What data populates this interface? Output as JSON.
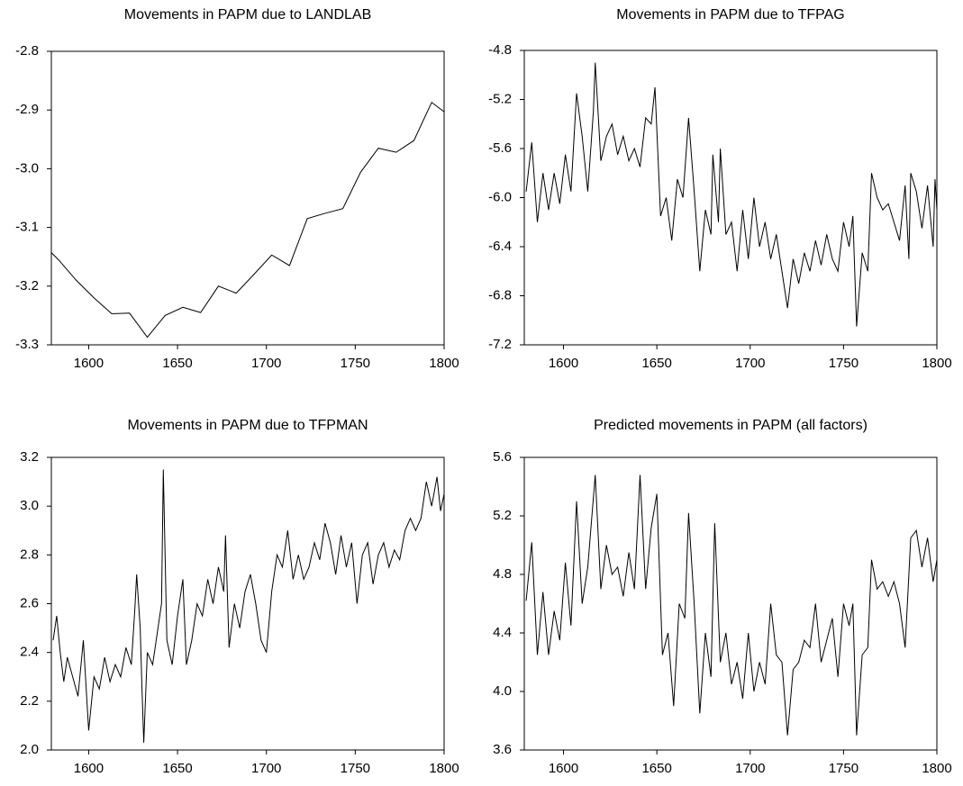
{
  "chart_data": [
    {
      "type": "line",
      "title": "Movements in PAPM due to LANDLAB",
      "color": "#000000",
      "x": [
        1579,
        1583,
        1593,
        1603,
        1613,
        1623,
        1633,
        1643,
        1653,
        1663,
        1673,
        1683,
        1693,
        1703,
        1713,
        1723,
        1733,
        1743,
        1753,
        1763,
        1773,
        1783,
        1793,
        1800
      ],
      "values": [
        -3.143,
        -3.155,
        -3.19,
        -3.22,
        -3.247,
        -3.246,
        -3.287,
        -3.25,
        -3.236,
        -3.245,
        -3.2,
        -3.212,
        -3.18,
        -3.147,
        -3.165,
        -3.085,
        -3.076,
        -3.068,
        -3.006,
        -2.965,
        -2.972,
        -2.952,
        -2.887,
        -2.903
      ],
      "xlim": [
        1579,
        1800
      ],
      "xticks": [
        1600,
        1650,
        1700,
        1750,
        1800
      ],
      "ylim": [
        -3.3,
        -2.8
      ],
      "yticks": [
        -3.3,
        -3.2,
        -3.1,
        {
          "value": -3.0,
          "label": "-3.0"
        },
        -2.9,
        -2.8
      ]
    },
    {
      "type": "line",
      "title": "Movements in PAPM due to TFPAG",
      "color": "#000000",
      "x": [
        1580,
        1583,
        1586,
        1589,
        1592,
        1595,
        1598,
        1601,
        1604,
        1607,
        1610,
        1613,
        1616,
        1617,
        1620,
        1623,
        1626,
        1629,
        1632,
        1635,
        1638,
        1641,
        1644,
        1647,
        1649,
        1652,
        1655,
        1658,
        1661,
        1664,
        1667,
        1670,
        1673,
        1676,
        1679,
        1680,
        1683,
        1684,
        1687,
        1690,
        1693,
        1696,
        1699,
        1702,
        1705,
        1708,
        1711,
        1714,
        1717,
        1720,
        1723,
        1726,
        1729,
        1732,
        1735,
        1738,
        1741,
        1744,
        1747,
        1750,
        1753,
        1755,
        1757,
        1760,
        1763,
        1765,
        1768,
        1771,
        1774,
        1777,
        1780,
        1783,
        1785,
        1786,
        1789,
        1792,
        1795,
        1798,
        1799,
        1800
      ],
      "values": [
        -5.95,
        -5.55,
        -6.2,
        -5.8,
        -6.1,
        -5.8,
        -6.05,
        -5.65,
        -5.95,
        -5.15,
        -5.5,
        -5.95,
        -5.3,
        -4.9,
        -5.7,
        -5.5,
        -5.4,
        -5.65,
        -5.5,
        -5.7,
        -5.6,
        -5.75,
        -5.35,
        -5.4,
        -5.1,
        -6.15,
        -6.0,
        -6.35,
        -5.85,
        -6.0,
        -5.35,
        -5.95,
        -6.6,
        -6.1,
        -6.3,
        -5.65,
        -6.2,
        -5.6,
        -6.3,
        -6.2,
        -6.6,
        -6.1,
        -6.5,
        -6.0,
        -6.4,
        -6.2,
        -6.5,
        -6.3,
        -6.6,
        -6.9,
        -6.5,
        -6.7,
        -6.45,
        -6.6,
        -6.35,
        -6.55,
        -6.3,
        -6.5,
        -6.6,
        -6.2,
        -6.4,
        -6.15,
        -7.05,
        -6.45,
        -6.6,
        -5.8,
        -6.0,
        -6.1,
        -6.05,
        -6.2,
        -6.35,
        -5.9,
        -6.5,
        -5.8,
        -5.95,
        -6.25,
        -5.9,
        -6.4,
        -5.85,
        -6.1
      ],
      "xlim": [
        1579,
        1800
      ],
      "xticks": [
        1600,
        1650,
        1700,
        1750,
        1800
      ],
      "ylim": [
        -7.2,
        -4.8
      ],
      "yticks": [
        -7.2,
        -6.8,
        -6.4,
        {
          "value": -6.0,
          "label": "-6.0"
        },
        -5.6,
        -5.2,
        -4.8
      ]
    },
    {
      "type": "line",
      "title": "Movements in PAPM due to TFPMAN",
      "color": "#000000",
      "x": [
        1580,
        1582,
        1584,
        1586,
        1588,
        1591,
        1594,
        1597,
        1600,
        1603,
        1606,
        1609,
        1612,
        1615,
        1618,
        1621,
        1624,
        1626,
        1627,
        1629,
        1630,
        1631,
        1633,
        1636,
        1639,
        1641,
        1642,
        1644,
        1647,
        1650,
        1653,
        1655,
        1658,
        1661,
        1664,
        1667,
        1670,
        1673,
        1676,
        1677,
        1679,
        1682,
        1685,
        1688,
        1691,
        1694,
        1697,
        1700,
        1703,
        1706,
        1709,
        1712,
        1715,
        1718,
        1721,
        1724,
        1727,
        1730,
        1733,
        1736,
        1739,
        1742,
        1745,
        1748,
        1751,
        1754,
        1757,
        1760,
        1763,
        1766,
        1769,
        1772,
        1775,
        1778,
        1781,
        1784,
        1787,
        1790,
        1793,
        1796,
        1798,
        1800
      ],
      "values": [
        2.45,
        2.55,
        2.4,
        2.28,
        2.38,
        2.3,
        2.22,
        2.45,
        2.08,
        2.3,
        2.25,
        2.38,
        2.28,
        2.35,
        2.3,
        2.42,
        2.35,
        2.58,
        2.72,
        2.5,
        2.25,
        2.03,
        2.4,
        2.35,
        2.5,
        2.6,
        3.15,
        2.45,
        2.35,
        2.55,
        2.7,
        2.35,
        2.45,
        2.6,
        2.55,
        2.7,
        2.6,
        2.75,
        2.65,
        2.88,
        2.42,
        2.6,
        2.5,
        2.65,
        2.72,
        2.6,
        2.45,
        2.4,
        2.65,
        2.8,
        2.75,
        2.9,
        2.7,
        2.8,
        2.7,
        2.75,
        2.85,
        2.78,
        2.93,
        2.85,
        2.72,
        2.88,
        2.75,
        2.85,
        2.6,
        2.8,
        2.85,
        2.68,
        2.8,
        2.85,
        2.75,
        2.82,
        2.78,
        2.9,
        2.95,
        2.9,
        2.95,
        3.1,
        3.0,
        3.12,
        2.98,
        3.05
      ],
      "xlim": [
        1579,
        1800
      ],
      "xticks": [
        1600,
        1650,
        1700,
        1750,
        1800
      ],
      "ylim": [
        2.0,
        3.2
      ],
      "yticks": [
        {
          "value": 2.0,
          "label": "2.0"
        },
        2.2,
        2.4,
        2.6,
        2.8,
        {
          "value": 3.0,
          "label": "3.0"
        },
        3.2
      ]
    },
    {
      "type": "line",
      "title": "Predicted movements in PAPM (all factors)",
      "color": "#000000",
      "x": [
        1580,
        1583,
        1586,
        1589,
        1592,
        1595,
        1598,
        1601,
        1604,
        1607,
        1610,
        1613,
        1617,
        1620,
        1623,
        1626,
        1629,
        1632,
        1635,
        1638,
        1641,
        1644,
        1647,
        1650,
        1653,
        1656,
        1659,
        1662,
        1665,
        1667,
        1670,
        1673,
        1676,
        1679,
        1681,
        1684,
        1687,
        1690,
        1693,
        1696,
        1699,
        1702,
        1705,
        1708,
        1711,
        1714,
        1717,
        1720,
        1723,
        1726,
        1729,
        1732,
        1735,
        1738,
        1741,
        1744,
        1747,
        1750,
        1753,
        1755,
        1757,
        1760,
        1763,
        1765,
        1768,
        1771,
        1774,
        1777,
        1780,
        1783,
        1786,
        1789,
        1792,
        1795,
        1798,
        1800
      ],
      "values": [
        4.62,
        5.02,
        4.25,
        4.68,
        4.25,
        4.55,
        4.35,
        4.88,
        4.45,
        5.3,
        4.6,
        4.85,
        5.48,
        4.7,
        5.0,
        4.8,
        4.85,
        4.65,
        4.95,
        4.7,
        5.48,
        4.7,
        5.12,
        5.35,
        4.25,
        4.4,
        3.9,
        4.6,
        4.5,
        5.22,
        4.6,
        3.85,
        4.4,
        4.1,
        5.15,
        4.2,
        4.4,
        4.05,
        4.2,
        3.95,
        4.4,
        4.0,
        4.2,
        4.05,
        4.6,
        4.25,
        4.2,
        3.7,
        4.15,
        4.2,
        4.35,
        4.3,
        4.6,
        4.2,
        4.35,
        4.5,
        4.1,
        4.6,
        4.45,
        4.6,
        3.7,
        4.25,
        4.3,
        4.9,
        4.7,
        4.75,
        4.65,
        4.75,
        4.6,
        4.3,
        5.05,
        5.1,
        4.85,
        5.05,
        4.75,
        4.9
      ],
      "xlim": [
        1579,
        1800
      ],
      "xticks": [
        1600,
        1650,
        1700,
        1750,
        1800
      ],
      "ylim": [
        3.6,
        5.6
      ],
      "yticks": [
        3.6,
        {
          "value": 4.0,
          "label": "4.0"
        },
        4.4,
        4.8,
        5.2,
        5.6
      ]
    }
  ]
}
